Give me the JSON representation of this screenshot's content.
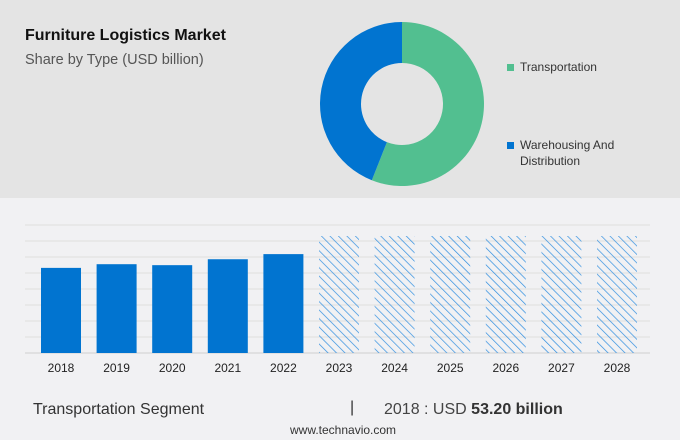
{
  "header": {
    "title": "Furniture Logistics Market",
    "subtitle": "Share by Type (USD billion)"
  },
  "chart_data": [
    {
      "type": "pie",
      "donut": true,
      "slices": [
        {
          "name": "Transportation",
          "share": 56,
          "color": "#52bf90"
        },
        {
          "name": "Warehousing And Distribution",
          "share": 44,
          "color": "#0174d0"
        }
      ],
      "legend": [
        "Transportation",
        "Warehousing And Distribution"
      ],
      "legend_placement": "right"
    },
    {
      "type": "bar",
      "categories": [
        "2018",
        "2019",
        "2020",
        "2021",
        "2022",
        "2023",
        "2024",
        "2025",
        "2026",
        "2027",
        "2028"
      ],
      "values": [
        53.2,
        55.5,
        54.9,
        58.6,
        61.8,
        null,
        null,
        null,
        null,
        null,
        null
      ],
      "forecast_hatched": [
        "2023",
        "2024",
        "2025",
        "2026",
        "2027",
        "2028"
      ],
      "color": "#0174d0",
      "grid": true,
      "ylim": [
        0,
        80
      ]
    }
  ],
  "footer": {
    "segment": "Transportation Segment",
    "separator": "|",
    "year_label": "2018 : USD",
    "value": "53.20 billion",
    "site": "www.technavio.com"
  }
}
